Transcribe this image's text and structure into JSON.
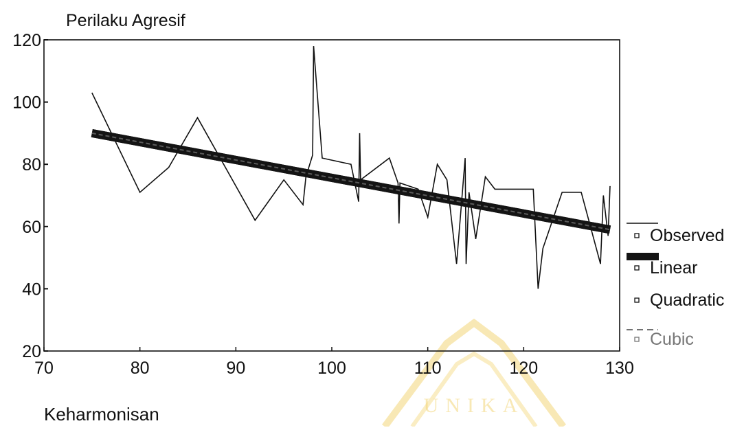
{
  "chart_data": {
    "type": "line",
    "title": "Perilaku Agresif",
    "xlabel": "Keharmonisan",
    "ylabel": "Perilaku Agresif",
    "xlim": [
      70,
      130
    ],
    "ylim": [
      20,
      120
    ],
    "xticks": [
      70,
      80,
      90,
      100,
      110,
      120,
      130
    ],
    "yticks": [
      20,
      40,
      60,
      80,
      100,
      120
    ],
    "grid": false,
    "legend_position": "right",
    "series": [
      {
        "name": "Observed",
        "style": "thin",
        "points": [
          [
            75,
            103
          ],
          [
            80,
            71
          ],
          [
            83,
            79
          ],
          [
            86,
            95
          ],
          [
            92,
            62
          ],
          [
            95,
            75
          ],
          [
            97,
            67
          ],
          [
            97.3,
            76
          ],
          [
            98,
            83
          ],
          [
            98.1,
            118
          ],
          [
            99,
            82
          ],
          [
            102,
            80
          ],
          [
            102.8,
            68
          ],
          [
            102.9,
            90
          ],
          [
            103,
            75
          ],
          [
            106,
            82
          ],
          [
            106.9,
            74
          ],
          [
            107,
            61
          ],
          [
            107.1,
            74
          ],
          [
            109,
            72
          ],
          [
            110,
            63
          ],
          [
            111,
            80
          ],
          [
            112,
            75
          ],
          [
            113,
            48
          ],
          [
            113.9,
            82
          ],
          [
            114,
            48
          ],
          [
            114.3,
            71
          ],
          [
            115,
            56
          ],
          [
            116,
            76
          ],
          [
            117,
            72
          ],
          [
            121,
            72
          ],
          [
            121.5,
            40
          ],
          [
            122,
            53
          ],
          [
            124,
            71
          ],
          [
            126,
            71
          ],
          [
            128,
            48
          ],
          [
            128.3,
            70
          ],
          [
            128.8,
            57
          ],
          [
            129,
            73
          ]
        ]
      },
      {
        "name": "Linear",
        "style": "thick",
        "points": [
          [
            75,
            90
          ],
          [
            129,
            59
          ]
        ]
      },
      {
        "name": "Quadratic",
        "style": "thick",
        "points": [
          [
            75,
            90
          ],
          [
            129,
            59
          ]
        ]
      },
      {
        "name": "Cubic",
        "style": "dashed",
        "points": [
          [
            75,
            90
          ],
          [
            129,
            59
          ]
        ]
      }
    ]
  },
  "colors": {
    "observed": "#111111",
    "fit": "#141414",
    "watermark": "#f3d679"
  },
  "watermark": {
    "text": "UNIKA"
  }
}
